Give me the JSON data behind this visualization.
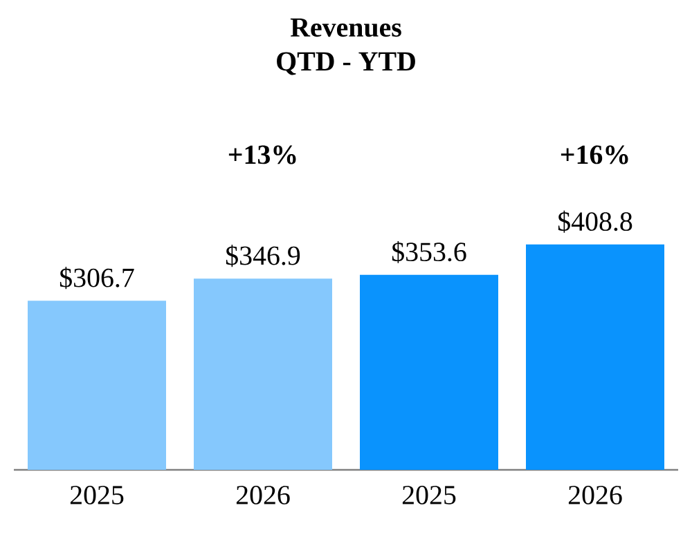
{
  "chart_data": {
    "type": "bar",
    "title": "Revenues",
    "subtitle": "QTD - YTD",
    "categories": [
      "2025",
      "2026",
      "2025",
      "2026"
    ],
    "values": [
      306.7,
      346.9,
      353.6,
      408.8
    ],
    "colors": [
      "#85c8fd",
      "#85c8fd",
      "#0a93fd",
      "#0a93fd"
    ],
    "value_labels": [
      "$306.7",
      "$346.9",
      "$353.6",
      "$408.8"
    ],
    "annotations": [
      "+13%",
      "+16%"
    ]
  }
}
